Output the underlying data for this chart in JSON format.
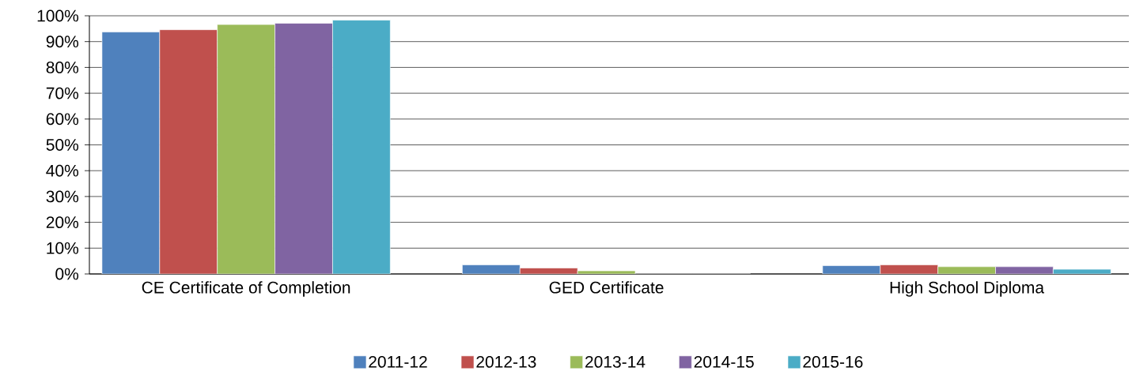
{
  "chart_data": {
    "type": "bar",
    "categories": [
      "CE Certificate of Completion",
      "GED Certificate",
      "High School Diploma"
    ],
    "series": [
      {
        "name": "2011-12",
        "color": "#4f81bd",
        "values": [
          93.7,
          3.5,
          3.2
        ]
      },
      {
        "name": "2012-13",
        "color": "#c0504d",
        "values": [
          94.6,
          2.3,
          3.5
        ]
      },
      {
        "name": "2013-14",
        "color": "#9bbb59",
        "values": [
          96.6,
          1.2,
          2.8
        ]
      },
      {
        "name": "2014-15",
        "color": "#8064a2",
        "values": [
          97.1,
          0,
          2.8
        ]
      },
      {
        "name": "2015-16",
        "color": "#4bacc6",
        "values": [
          98.3,
          0,
          1.8
        ]
      }
    ],
    "ylim": [
      0,
      100
    ],
    "yticks": [
      {
        "value": 0,
        "label": "0%"
      },
      {
        "value": 10,
        "label": "10%"
      },
      {
        "value": 20,
        "label": "20%"
      },
      {
        "value": 30,
        "label": "30%"
      },
      {
        "value": 40,
        "label": "40%"
      },
      {
        "value": 50,
        "label": "50%"
      },
      {
        "value": 60,
        "label": "60%"
      },
      {
        "value": 70,
        "label": "70%"
      },
      {
        "value": 80,
        "label": "80%"
      },
      {
        "value": 90,
        "label": "90%"
      },
      {
        "value": 100,
        "label": "100%"
      }
    ],
    "grid": "y",
    "legend": "bottom"
  }
}
